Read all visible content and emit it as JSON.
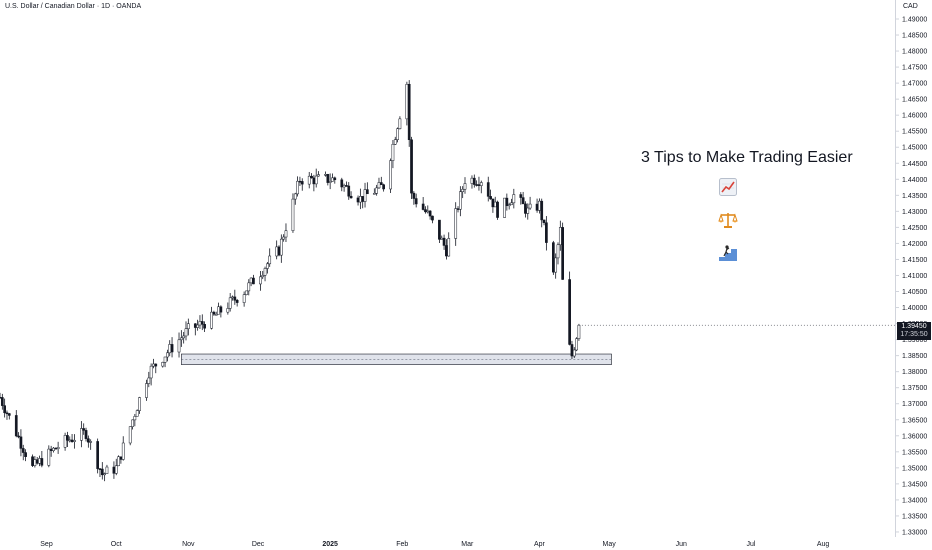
{
  "header": {
    "symbol_title": "U.S. Dollar / Canadian Dollar · 1D · OANDA",
    "currency": "CAD"
  },
  "price_badge": {
    "price": "1.39450",
    "countdown": "17:35:50"
  },
  "headline": "3 Tips to Make Trading Easier",
  "tips": [
    {
      "icon": "chart-increasing-icon"
    },
    {
      "icon": "balance-scale-icon"
    },
    {
      "icon": "climbing-steps-icon"
    }
  ],
  "colors": {
    "candle_body": "#131722",
    "candle_up_fill": "#ffffff",
    "zone_fill": "#e0e3eb",
    "price_badge_bg": "#131722"
  },
  "chart_data": {
    "type": "candlestick",
    "y_axis": {
      "ylim": [
        1.33,
        1.495
      ],
      "ticks": [
        "1.33000",
        "1.33500",
        "1.34000",
        "1.34500",
        "1.35000",
        "1.35500",
        "1.36000",
        "1.36500",
        "1.37000",
        "1.37500",
        "1.38000",
        "1.38500",
        "1.39000",
        "1.39500",
        "1.40000",
        "1.40500",
        "1.41000",
        "1.41500",
        "1.42000",
        "1.42500",
        "1.43000",
        "1.43500",
        "1.44000",
        "1.44500",
        "1.45000",
        "1.45500",
        "1.46000",
        "1.46500",
        "1.47000",
        "1.47500",
        "1.48000",
        "1.48500",
        "1.49000"
      ]
    },
    "x_axis": {
      "ticks": [
        "Sep",
        "Oct",
        "Nov",
        "Dec",
        "2025",
        "Feb",
        "Mar",
        "Apr",
        "May",
        "Jun",
        "Jul",
        "Aug"
      ]
    },
    "grid": false,
    "last_price": 1.3945,
    "support_zone": {
      "low": 1.3822,
      "high": 1.3855,
      "from": "Nov",
      "to": "Apr"
    },
    "close_path": [
      {
        "date": "2024-08-12",
        "close": 1.372
      },
      {
        "date": "2024-08-26",
        "close": 1.35
      },
      {
        "date": "2024-09-08",
        "close": 1.358
      },
      {
        "date": "2024-09-18",
        "close": 1.361
      },
      {
        "date": "2024-09-25",
        "close": 1.348
      },
      {
        "date": "2024-10-01",
        "close": 1.35
      },
      {
        "date": "2024-10-15",
        "close": 1.38
      },
      {
        "date": "2024-11-01",
        "close": 1.393
      },
      {
        "date": "2024-11-10",
        "close": 1.396
      },
      {
        "date": "2024-11-25",
        "close": 1.405
      },
      {
        "date": "2024-12-10",
        "close": 1.418
      },
      {
        "date": "2024-12-19",
        "close": 1.44
      },
      {
        "date": "2025-01-03",
        "close": 1.44
      },
      {
        "date": "2025-01-14",
        "close": 1.434
      },
      {
        "date": "2025-01-24",
        "close": 1.438
      },
      {
        "date": "2025-02-03",
        "close": 1.47
      },
      {
        "date": "2025-02-05",
        "close": 1.435
      },
      {
        "date": "2025-02-12",
        "close": 1.429
      },
      {
        "date": "2025-02-20",
        "close": 1.418
      },
      {
        "date": "2025-02-28",
        "close": 1.44
      },
      {
        "date": "2025-03-07",
        "close": 1.44
      },
      {
        "date": "2025-03-14",
        "close": 1.43
      },
      {
        "date": "2025-03-21",
        "close": 1.435
      },
      {
        "date": "2025-03-27",
        "close": 1.43
      },
      {
        "date": "2025-04-01",
        "close": 1.432
      },
      {
        "date": "2025-04-07",
        "close": 1.41
      },
      {
        "date": "2025-04-10",
        "close": 1.424
      },
      {
        "date": "2025-04-12",
        "close": 1.392
      },
      {
        "date": "2025-04-15",
        "close": 1.385
      },
      {
        "date": "2025-04-18",
        "close": 1.3945
      }
    ]
  }
}
